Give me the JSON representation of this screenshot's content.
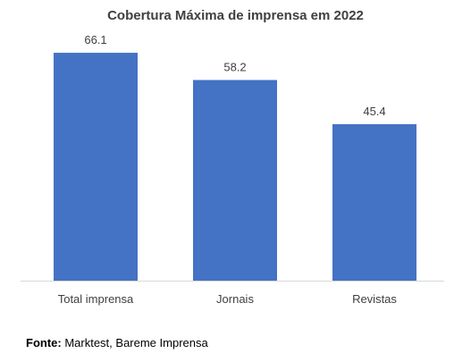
{
  "chart_data": {
    "type": "bar",
    "title": "Cobertura Máxima de imprensa em 2022",
    "categories": [
      "Total imprensa",
      "Jornais",
      "Revistas"
    ],
    "values": [
      66.1,
      58.2,
      45.4
    ],
    "data_labels": [
      "66.1",
      "58.2",
      "45.4"
    ],
    "xlabel": "",
    "ylabel": "",
    "ylim": [
      0,
      70
    ],
    "grid": false,
    "legend": "none",
    "bar_color": "#4472C4"
  },
  "source": {
    "label": "Fonte:",
    "text": " Marktest, Bareme Imprensa"
  }
}
